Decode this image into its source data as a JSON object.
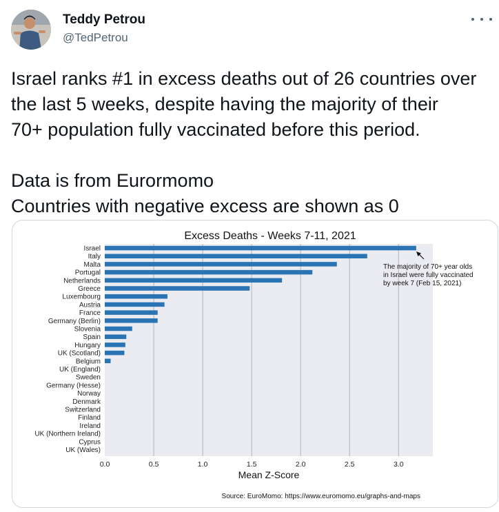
{
  "author": {
    "display_name": "Teddy Petrou",
    "handle": "@TedPetrou"
  },
  "icons": {
    "more": "more-horizontal-icon",
    "avatar": "user-avatar-photo"
  },
  "tweet": {
    "lines_paragraph_1": [
      "Israel ranks #1 in excess deaths out of 26 countries over",
      "the last 5 weeks, despite having the majority of their",
      "70+ population fully vaccinated before this period."
    ],
    "lines_paragraph_2": [
      "Data is from Eurormomo",
      "Countries with negative excess are shown as 0"
    ]
  },
  "colors": {
    "bar": "#2a74b4",
    "text_primary": "#0f1419",
    "text_secondary": "#536471",
    "plot_background": "#ebebf2",
    "gridline": "#b3b3b3"
  },
  "chart_data": {
    "type": "bar",
    "orientation": "horizontal",
    "title": "Excess Deaths - Weeks 7-11, 2021",
    "xlabel": "Mean Z-Score",
    "ylabel": "",
    "xlim": [
      0,
      3.35
    ],
    "xticks": [
      "0.0",
      "0.5",
      "1.0",
      "1.5",
      "2.0",
      "2.5",
      "3.0"
    ],
    "grid": "vertical",
    "categories": [
      "Israel",
      "Italy",
      "Malta",
      "Portugal",
      "Netherlands",
      "Greece",
      "Luxembourg",
      "Austria",
      "France",
      "Germany (Berlin)",
      "Slovenia",
      "Spain",
      "Hungary",
      "UK (Scotland)",
      "Belgium",
      "UK (England)",
      "Sweden",
      "Germany (Hesse)",
      "Norway",
      "Denmark",
      "Switzerland",
      "Finland",
      "Ireland",
      "UK (Northern Ireland)",
      "Cyprus",
      "UK (Wales)"
    ],
    "values": [
      3.18,
      2.68,
      2.37,
      2.12,
      1.81,
      1.48,
      0.64,
      0.61,
      0.54,
      0.54,
      0.28,
      0.22,
      0.21,
      0.2,
      0.06,
      0,
      0,
      0,
      0,
      0,
      0,
      0,
      0,
      0,
      0,
      0
    ],
    "annotation": {
      "lines": [
        "The majority of 70+ year olds",
        "in Israel were fully vaccinated",
        "by week 7 (Feb 15, 2021)"
      ],
      "points_to": "Israel"
    },
    "source": "Source: EuroMomo: https://www.euromomo.eu/graphs-and-maps"
  }
}
